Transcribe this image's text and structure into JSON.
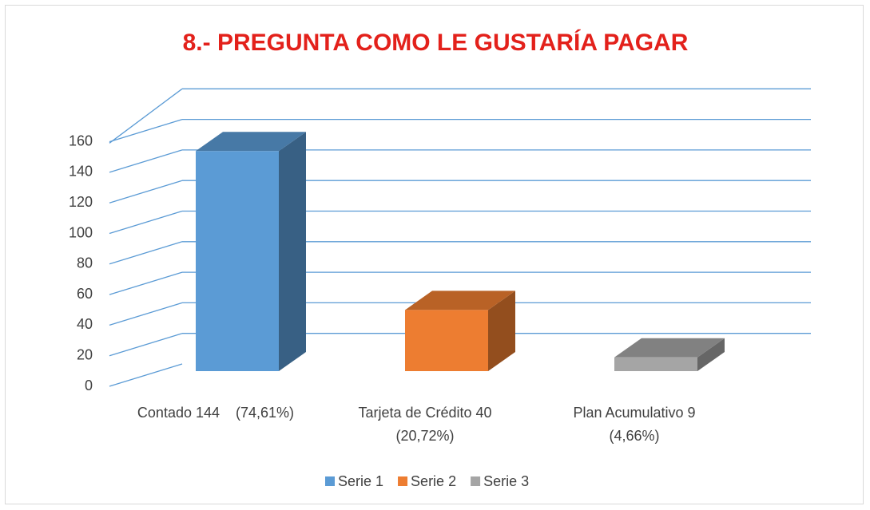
{
  "chart_data": {
    "type": "bar3d",
    "title": "8.- PREGUNTA COMO LE GUSTARÍA PAGAR",
    "categories": [
      "Contado 144    (74,61%)",
      "Tarjeta de Crédito 40\n(20,72%)",
      "Plan Acumulativo 9\n(4,66%)"
    ],
    "series": [
      {
        "name": "Serie 1",
        "color": "#5b9bd5",
        "values": [
          144,
          null,
          null
        ]
      },
      {
        "name": "Serie 2",
        "color": "#ed7d31",
        "values": [
          null,
          40,
          null
        ]
      },
      {
        "name": "Serie 3",
        "color": "#a5a5a5",
        "values": [
          null,
          null,
          9
        ]
      }
    ],
    "ylim": [
      0,
      180
    ],
    "yticks": [
      0,
      20,
      40,
      60,
      80,
      100,
      120,
      140,
      160
    ],
    "grid": true,
    "grid_color": "#5b9bd5",
    "legend": "bottom"
  }
}
